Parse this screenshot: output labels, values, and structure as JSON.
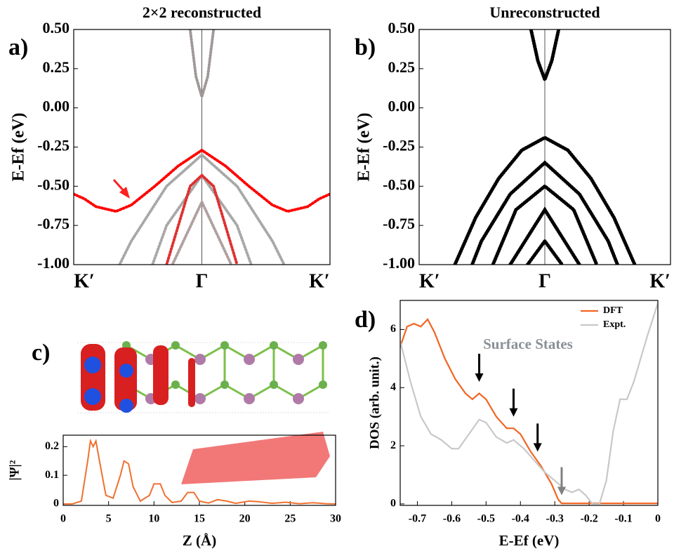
{
  "chart_data": [
    {
      "type": "line",
      "label": "a)",
      "title": "2×2 reconstructed",
      "ylabel": "E-Ef (eV)",
      "xlim": [
        -1.09,
        1.09
      ],
      "ylim": [
        -1,
        0.5
      ],
      "xticks": [
        {
          "value": -1,
          "label": "K′"
        },
        {
          "value": 0,
          "label": "Γ"
        },
        {
          "value": 1,
          "label": "K′"
        }
      ],
      "yticks": [
        {
          "value": 0.5,
          "label": "0.50"
        },
        {
          "value": 0.25,
          "label": "0.25"
        },
        {
          "value": 0,
          "label": "0.00"
        },
        {
          "value": -0.25,
          "label": "-0.25"
        },
        {
          "value": -0.5,
          "label": "-0.50"
        },
        {
          "value": -0.75,
          "label": "-0.75"
        },
        {
          "value": -1,
          "label": "-1.00"
        }
      ],
      "series": [
        {
          "color": "#a09898",
          "x": [
            -0.1,
            -0.05,
            0,
            0.05,
            0.1
          ],
          "values": [
            0.5,
            0.2,
            0.07,
            0.2,
            0.5
          ]
        },
        {
          "color": "#a8a8a8",
          "x": [
            -0.7,
            -0.6,
            -0.3,
            0,
            0.3,
            0.6,
            0.7
          ],
          "values": [
            -1,
            -0.85,
            -0.5,
            -0.3,
            -0.5,
            -0.85,
            -1
          ]
        },
        {
          "color": "#a8a8a8",
          "x": [
            -0.42,
            -0.3,
            0,
            0.3,
            0.42
          ],
          "values": [
            -1,
            -0.75,
            -0.43,
            -0.75,
            -1
          ]
        },
        {
          "color": "#b0a0a0",
          "x": [
            -0.25,
            0,
            0.25
          ],
          "values": [
            -1,
            -0.6,
            -1
          ]
        },
        {
          "color": "#e03030",
          "x": [
            -0.3,
            -0.1,
            0,
            0.1,
            0.3
          ],
          "values": [
            -1,
            -0.5,
            -0.43,
            -0.5,
            -1
          ]
        },
        {
          "color": "#ff0000",
          "x": [
            -1.09,
            -1,
            -0.9,
            -0.73,
            -0.6,
            -0.4,
            -0.2,
            0,
            0.2,
            0.4,
            0.6,
            0.73,
            0.9,
            1,
            1.09
          ],
          "values": [
            -0.55,
            -0.58,
            -0.63,
            -0.66,
            -0.62,
            -0.5,
            -0.37,
            -0.27,
            -0.37,
            -0.5,
            -0.62,
            -0.66,
            -0.63,
            -0.58,
            -0.55
          ]
        }
      ]
    },
    {
      "type": "line",
      "label": "b)",
      "title": "Unreconstructed",
      "ylabel": "E-Ef (eV)",
      "xlim": [
        -1.09,
        1.09
      ],
      "ylim": [
        -1,
        0.5
      ],
      "xticks": [
        {
          "value": -1,
          "label": "K′"
        },
        {
          "value": 0,
          "label": "Γ"
        },
        {
          "value": 1,
          "label": "K′"
        }
      ],
      "yticks": [
        {
          "value": 0.5,
          "label": "0.50"
        },
        {
          "value": 0.25,
          "label": "0.25"
        },
        {
          "value": 0,
          "label": "0.00"
        },
        {
          "value": -0.25,
          "label": "-0.25"
        },
        {
          "value": -0.5,
          "label": "-0.50"
        },
        {
          "value": -0.75,
          "label": "-0.75"
        },
        {
          "value": -1,
          "label": "-1.00"
        }
      ],
      "series": [
        {
          "color": "#000000",
          "x": [
            -0.12,
            -0.06,
            0,
            0.06,
            0.12
          ],
          "values": [
            0.5,
            0.3,
            0.18,
            0.3,
            0.5
          ]
        },
        {
          "color": "#000000",
          "x": [
            -0.78,
            -0.6,
            -0.4,
            -0.2,
            0,
            0.2,
            0.4,
            0.6,
            0.78
          ],
          "values": [
            -1,
            -0.7,
            -0.45,
            -0.27,
            -0.19,
            -0.27,
            -0.45,
            -0.7,
            -1
          ]
        },
        {
          "color": "#000000",
          "x": [
            -0.63,
            -0.55,
            -0.3,
            0,
            0.3,
            0.55,
            0.63
          ],
          "values": [
            -1,
            -0.85,
            -0.55,
            -0.35,
            -0.55,
            -0.85,
            -1
          ]
        },
        {
          "color": "#000000",
          "x": [
            -0.45,
            -0.25,
            0,
            0.25,
            0.45
          ],
          "values": [
            -1,
            -0.65,
            -0.5,
            -0.65,
            -1
          ]
        },
        {
          "color": "#000000",
          "x": [
            -0.3,
            0,
            0.3
          ],
          "values": [
            -1,
            -0.65,
            -1
          ]
        },
        {
          "color": "#000000",
          "x": [
            -0.15,
            0,
            0.15
          ],
          "values": [
            -1,
            -0.85,
            -1
          ]
        }
      ]
    },
    {
      "type": "line",
      "label": "c)",
      "ylabel": "|Ψ|²",
      "xlabel": "Z (Å)",
      "xlim": [
        0,
        30
      ],
      "ylim": [
        -0.005,
        0.24
      ],
      "xticks": [
        0,
        5,
        10,
        15,
        20,
        25,
        30
      ],
      "yticks": [
        0,
        0.1,
        0.2
      ],
      "series": [
        {
          "color": "#f07030",
          "x": [
            0,
            1,
            2,
            2.7,
            3.0,
            3.3,
            3.6,
            4.0,
            4.7,
            5.5,
            6.3,
            6.7,
            7.2,
            7.7,
            8.5,
            9.5,
            10.0,
            10.7,
            11.2,
            12,
            13,
            13.7,
            14.4,
            15,
            16,
            17,
            18,
            19,
            20.5,
            21.5,
            23,
            24.5,
            26,
            27.5,
            29,
            30
          ],
          "values": [
            0,
            0,
            0.01,
            0.15,
            0.22,
            0.2,
            0.22,
            0.15,
            0.03,
            0.02,
            0.1,
            0.15,
            0.14,
            0.06,
            0.01,
            0.03,
            0.07,
            0.07,
            0.03,
            0.005,
            0.01,
            0.04,
            0.04,
            0.01,
            0.003,
            0.015,
            0.01,
            0.002,
            0.01,
            0.008,
            0.002,
            0.006,
            0.001,
            0.004,
            0.001,
            0
          ]
        }
      ]
    },
    {
      "type": "line",
      "label": "d)",
      "ylabel": "DOS (arb. unit.)",
      "xlabel": "E-Ef  (eV)",
      "annotation": "Surface States",
      "xlim": [
        -0.75,
        0
      ],
      "ylim": [
        -0.05,
        7
      ],
      "xticks": [
        -0.7,
        -0.6,
        -0.5,
        -0.4,
        -0.3,
        -0.2,
        -0.1,
        0
      ],
      "yticks": [
        0,
        2,
        4,
        6
      ],
      "legend": "upper right",
      "arrows": [
        {
          "x": -0.52,
          "y": 4.2,
          "color": "#000000"
        },
        {
          "x": -0.42,
          "y": 3.0,
          "color": "#000000"
        },
        {
          "x": -0.35,
          "y": 1.8,
          "color": "#000000"
        },
        {
          "x": -0.28,
          "y": 0.3,
          "color": "#808080"
        }
      ],
      "series": [
        {
          "name": "DFT",
          "color": "#f26522",
          "x": [
            -0.75,
            -0.73,
            -0.71,
            -0.69,
            -0.67,
            -0.65,
            -0.62,
            -0.59,
            -0.56,
            -0.54,
            -0.52,
            -0.5,
            -0.47,
            -0.44,
            -0.42,
            -0.4,
            -0.37,
            -0.34,
            -0.31,
            -0.29,
            -0.28,
            -0.2,
            0
          ],
          "values": [
            5.4,
            6.1,
            6.2,
            6.1,
            6.35,
            5.9,
            5.0,
            4.3,
            3.8,
            3.6,
            3.8,
            3.6,
            3.0,
            2.6,
            2.6,
            2.4,
            1.8,
            1.3,
            0.7,
            0.15,
            0.02,
            0.02,
            0.02
          ]
        },
        {
          "name": "Expt.",
          "color": "#c8c8c8",
          "x": [
            -0.75,
            -0.72,
            -0.69,
            -0.66,
            -0.63,
            -0.6,
            -0.58,
            -0.55,
            -0.52,
            -0.5,
            -0.47,
            -0.44,
            -0.42,
            -0.39,
            -0.36,
            -0.33,
            -0.3,
            -0.27,
            -0.25,
            -0.23,
            -0.21,
            -0.19,
            -0.17,
            -0.15,
            -0.13,
            -0.11,
            -0.09,
            -0.07,
            -0.05,
            -0.03,
            0
          ],
          "values": [
            5.6,
            4.2,
            3.0,
            2.4,
            2.2,
            1.9,
            1.9,
            2.4,
            2.9,
            2.8,
            2.3,
            2.1,
            2.2,
            1.9,
            1.5,
            1.1,
            0.8,
            0.5,
            0.4,
            0.5,
            0.3,
            0,
            0,
            0.8,
            2.5,
            3.6,
            3.6,
            4.2,
            5.0,
            5.8,
            6.9
          ]
        }
      ]
    }
  ]
}
